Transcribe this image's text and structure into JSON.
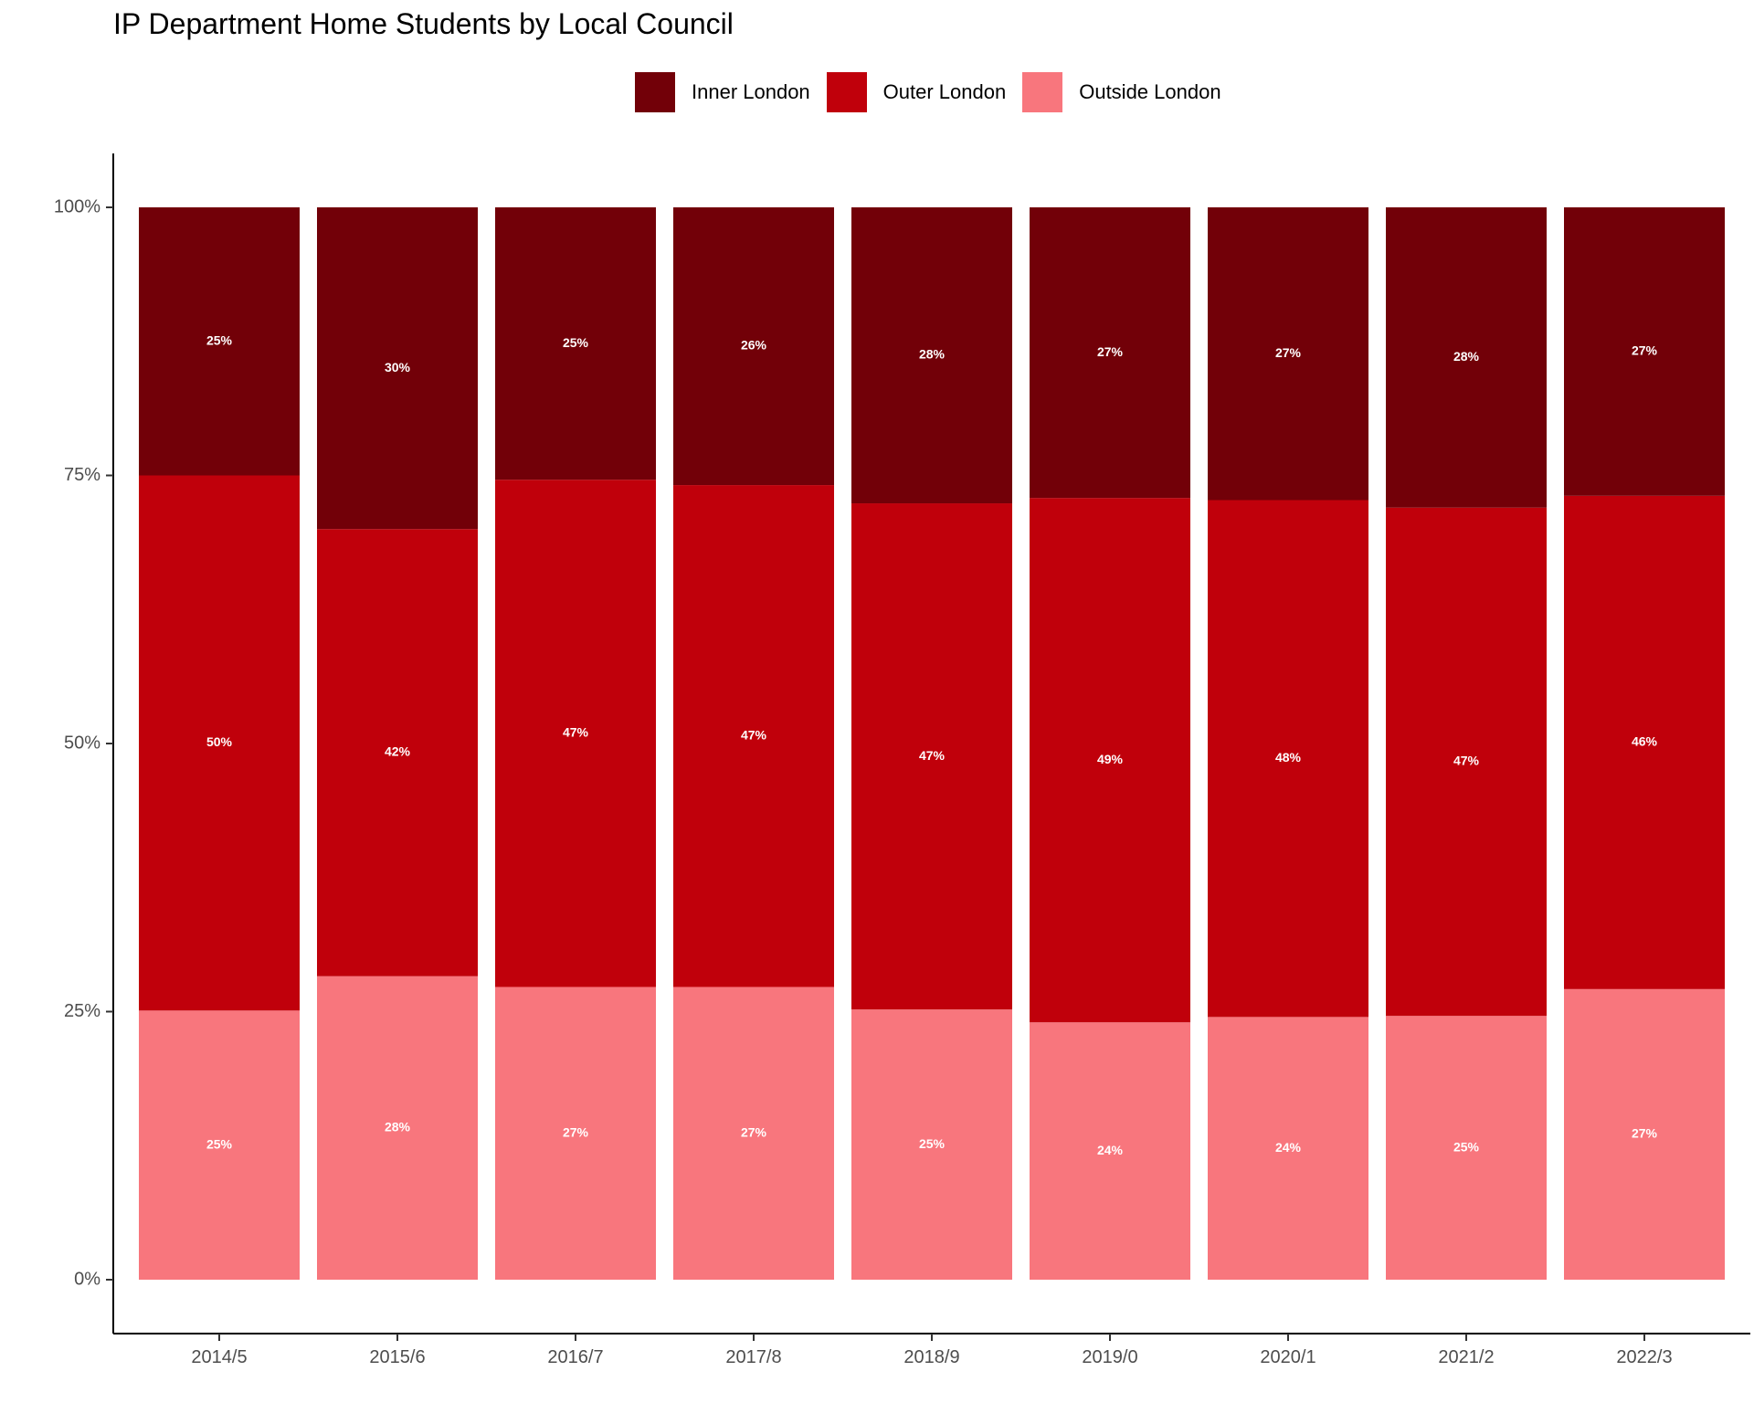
{
  "chart_data": {
    "type": "bar",
    "stacked": true,
    "title": "IP Department Home Students by Local Council",
    "xlabel": "",
    "ylabel": "",
    "ylim": [
      0,
      1
    ],
    "y_ticks": [
      "0%",
      "25%",
      "50%",
      "75%",
      "100%"
    ],
    "legend_position": "top",
    "grid": false,
    "categories": [
      "2014/5",
      "2015/6",
      "2016/7",
      "2017/8",
      "2018/9",
      "2019/0",
      "2020/1",
      "2021/2",
      "2022/3"
    ],
    "series": [
      {
        "name": "Outside London",
        "color": "#f8767d",
        "values": [
          0.251,
          0.283,
          0.273,
          0.273,
          0.252,
          0.24,
          0.245,
          0.246,
          0.271
        ],
        "labels": [
          "25%",
          "28%",
          "27%",
          "27%",
          "25%",
          "24%",
          "24%",
          "25%",
          "27%"
        ]
      },
      {
        "name": "Outer London",
        "color": "#c0000b",
        "values": [
          0.499,
          0.417,
          0.473,
          0.468,
          0.472,
          0.489,
          0.482,
          0.474,
          0.46
        ],
        "labels": [
          "50%",
          "42%",
          "47%",
          "47%",
          "47%",
          "49%",
          "48%",
          "47%",
          "46%"
        ]
      },
      {
        "name": "Inner London",
        "color": "#720008",
        "values": [
          0.25,
          0.3,
          0.254,
          0.259,
          0.276,
          0.271,
          0.273,
          0.28,
          0.269
        ],
        "labels": [
          "25%",
          "30%",
          "25%",
          "26%",
          "28%",
          "27%",
          "27%",
          "28%",
          "27%"
        ]
      }
    ],
    "legend_order": [
      "Inner London",
      "Outer London",
      "Outside London"
    ]
  }
}
